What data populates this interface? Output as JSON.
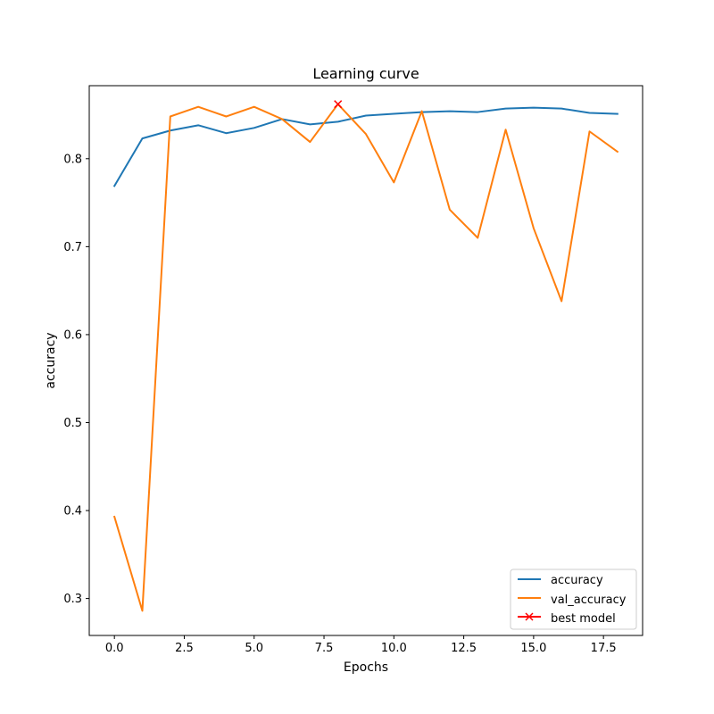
{
  "chart_data": {
    "type": "line",
    "title": "Learning curve",
    "xlabel": "Epochs",
    "ylabel": "accuracy",
    "xlim": [
      -0.9,
      18.9
    ],
    "ylim": [
      0.258,
      0.883
    ],
    "x_ticks": [
      0.0,
      2.5,
      5.0,
      7.5,
      10.0,
      12.5,
      15.0,
      17.5
    ],
    "x_tick_labels": [
      "0.0",
      "2.5",
      "5.0",
      "7.5",
      "10.0",
      "12.5",
      "15.0",
      "17.5"
    ],
    "y_ticks": [
      0.3,
      0.4,
      0.5,
      0.6,
      0.7,
      0.8
    ],
    "y_tick_labels": [
      "0.3",
      "0.4",
      "0.5",
      "0.6",
      "0.7",
      "0.8"
    ],
    "grid": false,
    "legend_position": "lower right",
    "x": [
      0,
      1,
      2,
      3,
      4,
      5,
      6,
      7,
      8,
      9,
      10,
      11,
      12,
      13,
      14,
      15,
      16,
      17,
      18
    ],
    "series": [
      {
        "name": "accuracy",
        "color": "#1f77b4",
        "values": [
          0.769,
          0.823,
          0.832,
          0.838,
          0.829,
          0.835,
          0.845,
          0.839,
          0.842,
          0.849,
          0.851,
          0.853,
          0.854,
          0.853,
          0.857,
          0.858,
          0.857,
          0.852,
          0.851
        ]
      },
      {
        "name": "val_accuracy",
        "color": "#ff7f0e",
        "values": [
          0.393,
          0.286,
          0.848,
          0.859,
          0.848,
          0.859,
          0.845,
          0.819,
          0.862,
          0.828,
          0.773,
          0.854,
          0.742,
          0.71,
          0.833,
          0.721,
          0.638,
          0.831,
          0.808
        ]
      }
    ],
    "markers": [
      {
        "name": "best model",
        "color": "#ff0000",
        "marker": "x",
        "x": 8,
        "y": 0.862
      }
    ]
  }
}
